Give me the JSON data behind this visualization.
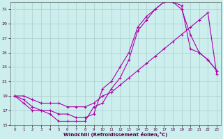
{
  "xlabel": "Windchill (Refroidissement éolien,°C)",
  "background_color": "#cceeed",
  "grid_color": "#aacccc",
  "line_color": "#aa00aa",
  "xlim": [
    -0.5,
    23.5
  ],
  "ylim": [
    15,
    32
  ],
  "yticks": [
    15,
    17,
    19,
    21,
    23,
    25,
    27,
    29,
    31
  ],
  "xticks": [
    0,
    1,
    2,
    3,
    4,
    5,
    6,
    7,
    8,
    9,
    10,
    11,
    12,
    13,
    14,
    15,
    16,
    17,
    18,
    19,
    20,
    21,
    22,
    23
  ],
  "line1_x": [
    0,
    1,
    2,
    3,
    4,
    5,
    6,
    7,
    8,
    9,
    10,
    11,
    12,
    13,
    14,
    15,
    16,
    17,
    18,
    19,
    20,
    21,
    22,
    23
  ],
  "line1_y": [
    19,
    18,
    17,
    17,
    16.5,
    15.5,
    15.5,
    15.5,
    15.5,
    17.5,
    18,
    20,
    21.5,
    24,
    28,
    29.5,
    31,
    32,
    32,
    31,
    27.5,
    25,
    24,
    22.5
  ],
  "line2_x": [
    0,
    1,
    2,
    3,
    4,
    5,
    6,
    7,
    8,
    9,
    10,
    11,
    12,
    13,
    14,
    15,
    16,
    17,
    18,
    19,
    20,
    21,
    22,
    23
  ],
  "line2_y": [
    19,
    18.5,
    17.5,
    17,
    17,
    16.5,
    16.5,
    16,
    16,
    16.5,
    20,
    21,
    23,
    25,
    28.5,
    30,
    31,
    32,
    32,
    31.5,
    25.5,
    25,
    24,
    22.5
  ],
  "line3_x": [
    0,
    1,
    2,
    3,
    4,
    5,
    6,
    7,
    8,
    9,
    10,
    11,
    12,
    13,
    14,
    15,
    16,
    17,
    18,
    19,
    20,
    21,
    22,
    23
  ],
  "line3_y": [
    19,
    19,
    18.5,
    18,
    18,
    18,
    17.5,
    17.5,
    17.5,
    18,
    19,
    19.5,
    20.5,
    21.5,
    22.5,
    23.5,
    24.5,
    25.5,
    26.5,
    27.5,
    28.5,
    29.5,
    30.5,
    22
  ]
}
